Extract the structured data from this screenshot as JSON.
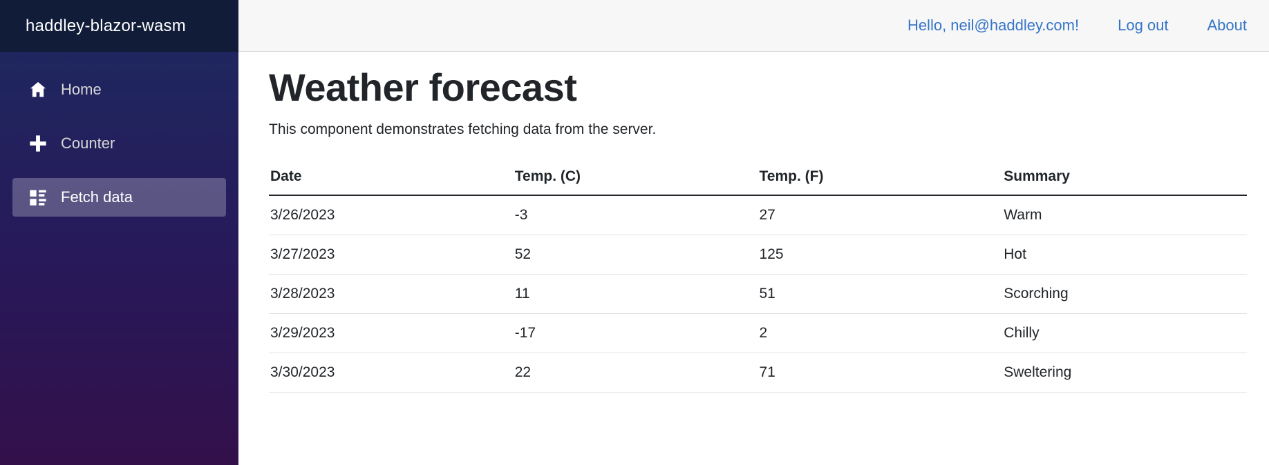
{
  "brand": {
    "title": "haddley-blazor-wasm"
  },
  "sidebar": {
    "items": [
      {
        "label": "Home",
        "icon": "home-icon",
        "active": false
      },
      {
        "label": "Counter",
        "icon": "plus-icon",
        "active": false
      },
      {
        "label": "Fetch data",
        "icon": "list-rich-icon",
        "active": true
      }
    ]
  },
  "topbar": {
    "greeting": "Hello, neil@haddley.com!",
    "log_out": "Log out",
    "about": "About"
  },
  "main": {
    "title": "Weather forecast",
    "subtitle": "This component demonstrates fetching data from the server."
  },
  "table": {
    "headers": [
      "Date",
      "Temp. (C)",
      "Temp. (F)",
      "Summary"
    ],
    "rows": [
      [
        "3/26/2023",
        "-3",
        "27",
        "Warm"
      ],
      [
        "3/27/2023",
        "52",
        "125",
        "Hot"
      ],
      [
        "3/28/2023",
        "11",
        "51",
        "Scorching"
      ],
      [
        "3/29/2023",
        "-17",
        "2",
        "Chilly"
      ],
      [
        "3/30/2023",
        "22",
        "71",
        "Sweltering"
      ]
    ]
  },
  "colors": {
    "brand_bar_bg": "#111c38",
    "sidebar_gradient_start": "#1d2a60",
    "sidebar_gradient_end": "#33104a",
    "active_item_bg": "rgba(255,255,255,0.25)",
    "topbar_bg": "#f7f7f7",
    "link_blue": "#3474c8",
    "text_dark": "#212529",
    "row_border": "#dee2e6",
    "header_border": "#23272b"
  }
}
